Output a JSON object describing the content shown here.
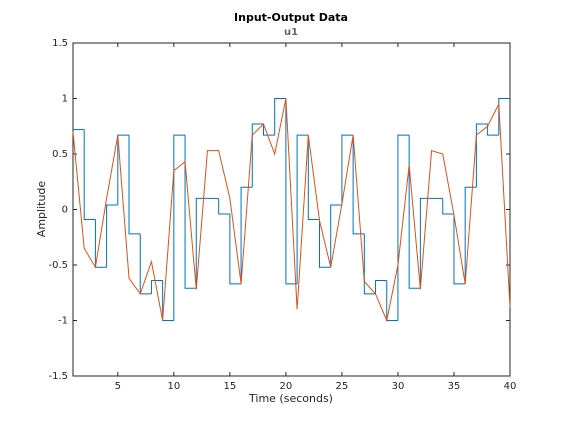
{
  "chart_data": {
    "type": "line",
    "title": "Input-Output Data",
    "subtitle": "u1",
    "xlabel": "Time (seconds)",
    "ylabel": "Amplitude",
    "x": [
      1,
      2,
      3,
      4,
      5,
      6,
      7,
      8,
      9,
      10,
      11,
      12,
      13,
      14,
      15,
      16,
      17,
      18,
      19,
      20,
      21,
      22,
      23,
      24,
      25,
      26,
      27,
      28,
      29,
      30,
      31,
      32,
      33,
      34,
      35,
      36,
      37,
      38,
      39,
      40
    ],
    "series": [
      {
        "color": "#0072bd",
        "step": true,
        "values": [
          0.72,
          -0.09,
          -0.52,
          0.04,
          0.67,
          -0.22,
          -0.76,
          -0.64,
          -1.0,
          0.67,
          -0.71,
          0.1,
          0.1,
          -0.04,
          -0.67,
          0.2,
          0.77,
          0.67,
          1.0,
          -0.67,
          0.67,
          -0.09,
          -0.52,
          0.04,
          0.67,
          -0.22,
          -0.76,
          -0.64,
          -1.0,
          0.67,
          -0.71,
          0.1,
          0.1,
          -0.04,
          -0.67,
          0.2,
          0.77,
          0.67,
          1.0,
          1.0
        ]
      },
      {
        "color": "#d95319",
        "step": false,
        "values": [
          0.7,
          -0.35,
          -0.52,
          0.1,
          0.67,
          -0.62,
          -0.76,
          -0.47,
          -1.0,
          0.35,
          0.43,
          -0.72,
          0.53,
          0.53,
          0.1,
          -0.67,
          0.67,
          0.77,
          0.5,
          1.0,
          -0.9,
          0.67,
          -0.1,
          -0.52,
          0.05,
          0.67,
          -0.65,
          -0.76,
          -1.0,
          -0.5,
          0.4,
          -0.72,
          0.53,
          0.5,
          -0.05,
          -0.67,
          0.67,
          0.75,
          0.95,
          -0.88
        ]
      }
    ],
    "xlim": [
      1,
      40
    ],
    "xticks": [
      5,
      10,
      15,
      20,
      25,
      30,
      35,
      40
    ],
    "ylim": [
      -1.5,
      1.5
    ],
    "yticks": [
      -1.5,
      -1,
      -0.5,
      0,
      0.5,
      1,
      1.5
    ]
  }
}
